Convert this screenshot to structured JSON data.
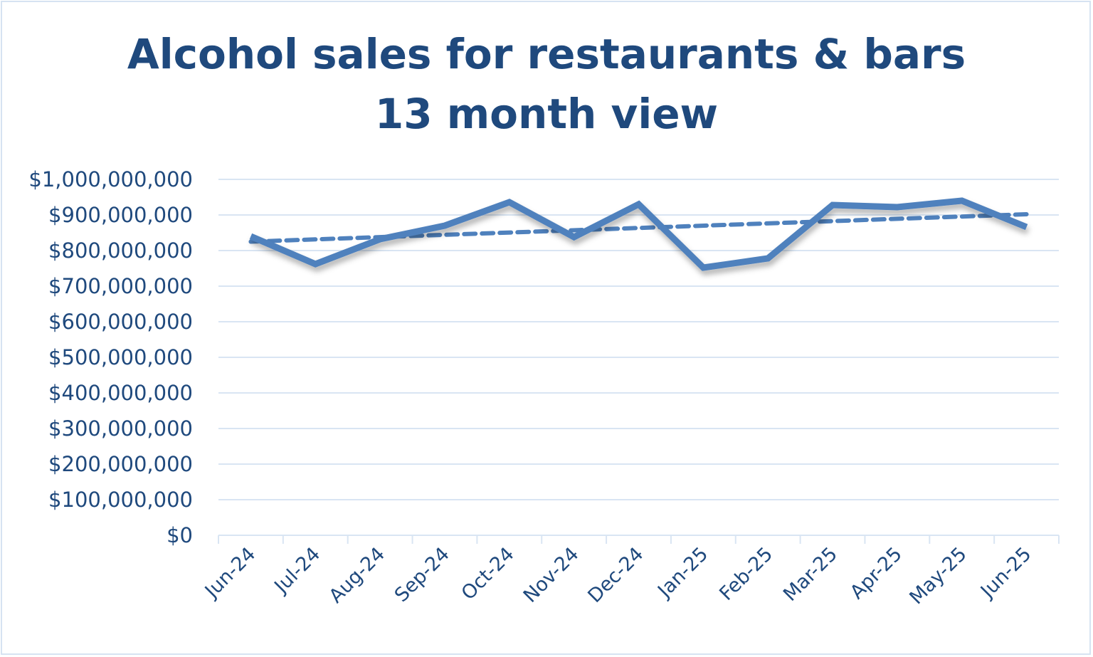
{
  "chart_data": {
    "type": "line",
    "title": "Alcohol sales for restaurants & bars",
    "subtitle": "13 month view",
    "xlabel": "",
    "ylabel": "",
    "categories": [
      "Jun-24",
      "Jul-24",
      "Aug-24",
      "Sep-24",
      "Oct-24",
      "Nov-24",
      "Dec-24",
      "Jan-25",
      "Feb-25",
      "Mar-25",
      "Apr-25",
      "May-25",
      "Jun-25"
    ],
    "series": [
      {
        "values": [
          840000000,
          762000000,
          832000000,
          870000000,
          936000000,
          838000000,
          930000000,
          752000000,
          778000000,
          928000000,
          922000000,
          940000000,
          866000000
        ]
      }
    ],
    "trendline": {
      "type": "linear",
      "style": "dashed",
      "start": 825000000,
      "end": 902000000
    },
    "ylim": [
      0,
      1000000000
    ],
    "yticks": [
      "$0",
      "$100,000,000",
      "$200,000,000",
      "$300,000,000",
      "$400,000,000",
      "$500,000,000",
      "$600,000,000",
      "$700,000,000",
      "$800,000,000",
      "$900,000,000",
      "$1,000,000,000"
    ],
    "grid": true,
    "legend": "none",
    "colors": {
      "line": "#4f81bd",
      "text": "#1f497d",
      "grid": "#d9e5f3"
    }
  }
}
